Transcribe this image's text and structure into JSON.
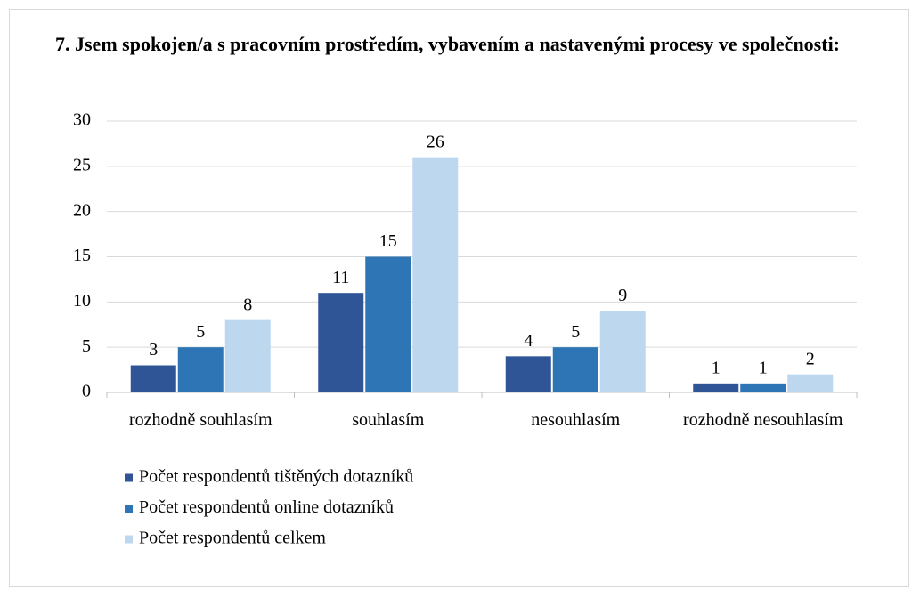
{
  "chart_data": {
    "type": "bar",
    "title": "7. Jsem spokojen/a s pracovním prostředím, vybavením a nastavenými procesy ve společnosti:",
    "categories": [
      "rozhodně souhlasím",
      "souhlasím",
      "nesouhlasím",
      "rozhodně nesouhlasím"
    ],
    "series": [
      {
        "name": "Počet respondentů tištěných dotazníků",
        "color": "#2f5597",
        "values": [
          3,
          11,
          4,
          1
        ]
      },
      {
        "name": "Počet respondentů online dotazníků",
        "color": "#2e75b6",
        "values": [
          5,
          15,
          5,
          1
        ]
      },
      {
        "name": "Počet respondentů celkem",
        "color": "#bdd7ee",
        "values": [
          8,
          26,
          9,
          2
        ]
      }
    ],
    "ylim": [
      0,
      30
    ],
    "yticks": [
      0,
      5,
      10,
      15,
      20,
      25,
      30
    ],
    "grid": true,
    "legend": "bottom"
  }
}
